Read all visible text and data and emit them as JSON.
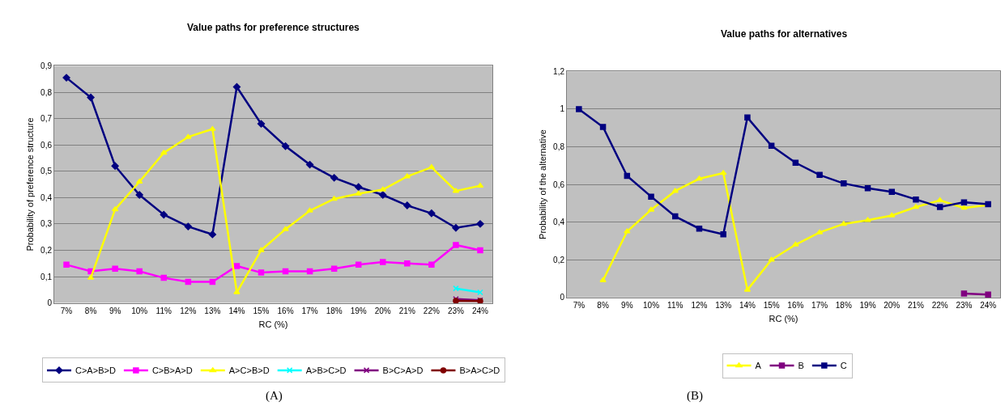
{
  "chart_data": [
    {
      "type": "line",
      "title": "Value paths for preference structures",
      "xlabel": "RC (%)",
      "ylabel": "Probability of preference structure",
      "categories": [
        "7%",
        "8%",
        "9%",
        "10%",
        "11%",
        "12%",
        "13%",
        "14%",
        "15%",
        "16%",
        "17%",
        "18%",
        "19%",
        "20%",
        "21%",
        "22%",
        "23%",
        "24%"
      ],
      "series": [
        {
          "name": "C>A>B>D",
          "color": "#000080",
          "marker": "diamond",
          "values": [
            0.855,
            0.78,
            0.52,
            0.41,
            0.335,
            0.29,
            0.26,
            0.82,
            0.68,
            0.595,
            0.525,
            0.475,
            0.44,
            0.41,
            0.37,
            0.34,
            0.285,
            0.3
          ]
        },
        {
          "name": "C>B>A>D",
          "color": "#ff00ff",
          "marker": "square",
          "values": [
            0.145,
            0.12,
            0.13,
            0.12,
            0.095,
            0.08,
            0.08,
            0.14,
            0.115,
            0.12,
            0.12,
            0.13,
            0.145,
            0.155,
            0.15,
            0.145,
            0.22,
            0.2
          ]
        },
        {
          "name": "A>C>B>D",
          "color": "#ffff00",
          "marker": "triangle",
          "values": [
            null,
            0.095,
            0.355,
            0.46,
            0.57,
            0.63,
            0.66,
            0.04,
            0.2,
            0.28,
            0.35,
            0.395,
            0.415,
            0.43,
            0.48,
            0.515,
            0.425,
            0.445
          ]
        },
        {
          "name": "A>B>C>D",
          "color": "#00ffff",
          "marker": "cross",
          "values": [
            null,
            null,
            null,
            null,
            null,
            null,
            null,
            null,
            null,
            null,
            null,
            null,
            null,
            null,
            null,
            null,
            0.055,
            0.04
          ]
        },
        {
          "name": "B>C>A>D",
          "color": "#800080",
          "marker": "cross",
          "values": [
            null,
            null,
            null,
            null,
            null,
            null,
            null,
            null,
            null,
            null,
            null,
            null,
            null,
            null,
            null,
            null,
            0.015,
            0.01
          ]
        },
        {
          "name": "B>A>C>D",
          "color": "#800000",
          "marker": "circle",
          "values": [
            null,
            null,
            null,
            null,
            null,
            null,
            null,
            null,
            null,
            null,
            null,
            null,
            null,
            null,
            null,
            null,
            0.008,
            0.007
          ]
        }
      ],
      "ylim": [
        0,
        0.9
      ],
      "yticks": [
        0,
        {
          "value": 0.1,
          "label": "0,1"
        },
        {
          "value": 0.2,
          "label": "0,2"
        },
        {
          "value": 0.3,
          "label": "0,3"
        },
        {
          "value": 0.4,
          "label": "0,4"
        },
        {
          "value": 0.5,
          "label": "0,5"
        },
        {
          "value": 0.6,
          "label": "0,6"
        },
        {
          "value": 0.7,
          "label": "0,7"
        },
        {
          "value": 0.8,
          "label": "0,8"
        },
        {
          "value": 0.9,
          "label": "0,9"
        }
      ],
      "grid": "y",
      "legend": "bottom",
      "annotations": [
        "(A)"
      ]
    },
    {
      "type": "line",
      "title": "Value paths for alternatives",
      "xlabel": "RC (%)",
      "ylabel": "Probability of the alternative",
      "categories": [
        "7%",
        "8%",
        "9%",
        "10%",
        "11%",
        "12%",
        "13%",
        "14%",
        "15%",
        "16%",
        "17%",
        "18%",
        "19%",
        "20%",
        "21%",
        "22%",
        "23%",
        "24%"
      ],
      "series": [
        {
          "name": "A",
          "color": "#ffff00",
          "marker": "triangle",
          "values": [
            null,
            0.09,
            0.35,
            0.465,
            0.565,
            0.63,
            0.66,
            0.04,
            0.2,
            0.28,
            0.345,
            0.39,
            0.41,
            0.435,
            0.48,
            0.515,
            0.475,
            0.49
          ]
        },
        {
          "name": "B",
          "color": "#800080",
          "marker": "square",
          "values": [
            null,
            null,
            null,
            null,
            null,
            null,
            null,
            null,
            null,
            null,
            null,
            null,
            null,
            null,
            null,
            null,
            0.02,
            0.015
          ]
        },
        {
          "name": "C",
          "color": "#000080",
          "marker": "square",
          "values": [
            1.0,
            0.905,
            0.645,
            0.535,
            0.43,
            0.365,
            0.335,
            0.955,
            0.805,
            0.715,
            0.65,
            0.605,
            0.58,
            0.56,
            0.52,
            0.48,
            0.505,
            0.495
          ]
        }
      ],
      "ylim": [
        0,
        1.2
      ],
      "yticks": [
        0,
        {
          "value": 0.2,
          "label": "0,2"
        },
        {
          "value": 0.4,
          "label": "0,4"
        },
        {
          "value": 0.6,
          "label": "0,6"
        },
        {
          "value": 0.8,
          "label": "0,8"
        },
        1,
        {
          "value": 1.2,
          "label": "1,2"
        }
      ],
      "grid": "y",
      "legend": "bottom",
      "annotations": [
        "(B)"
      ]
    }
  ]
}
